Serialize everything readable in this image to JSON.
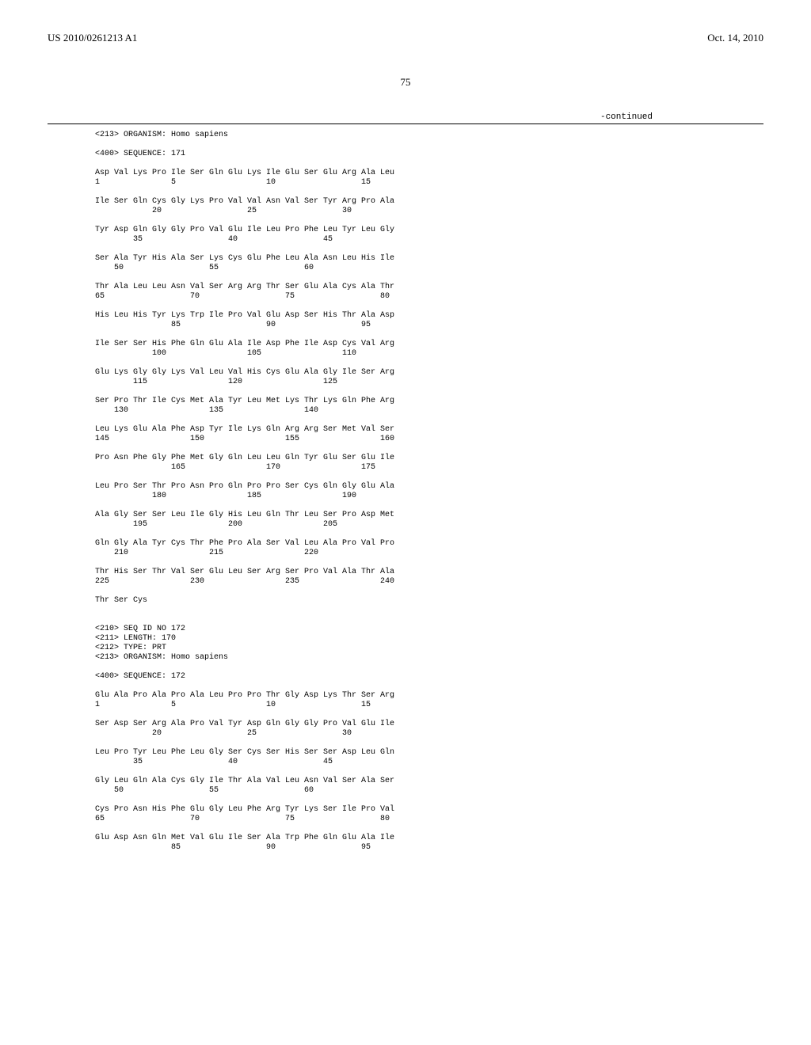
{
  "header": {
    "pub_number": "US 2010/0261213 A1",
    "pub_date": "Oct. 14, 2010"
  },
  "page_number": "75",
  "continued_label": "-continued",
  "seq171": {
    "organism_line": "<213> ORGANISM: Homo sapiens",
    "sequence_line": "<400> SEQUENCE: 171",
    "rows": [
      {
        "aa": "Asp Val Lys Pro Ile Ser Gln Glu Lys Ile Glu Ser Glu Arg Ala Leu",
        "nums": "1               5                   10                  15"
      },
      {
        "aa": "Ile Ser Gln Cys Gly Lys Pro Val Val Asn Val Ser Tyr Arg Pro Ala",
        "nums": "            20                  25                  30"
      },
      {
        "aa": "Tyr Asp Gln Gly Gly Pro Val Glu Ile Leu Pro Phe Leu Tyr Leu Gly",
        "nums": "        35                  40                  45"
      },
      {
        "aa": "Ser Ala Tyr His Ala Ser Lys Cys Glu Phe Leu Ala Asn Leu His Ile",
        "nums": "    50                  55                  60"
      },
      {
        "aa": "Thr Ala Leu Leu Asn Val Ser Arg Arg Thr Ser Glu Ala Cys Ala Thr",
        "nums": "65                  70                  75                  80"
      },
      {
        "aa": "His Leu His Tyr Lys Trp Ile Pro Val Glu Asp Ser His Thr Ala Asp",
        "nums": "                85                  90                  95"
      },
      {
        "aa": "Ile Ser Ser His Phe Gln Glu Ala Ile Asp Phe Ile Asp Cys Val Arg",
        "nums": "            100                 105                 110"
      },
      {
        "aa": "Glu Lys Gly Gly Lys Val Leu Val His Cys Glu Ala Gly Ile Ser Arg",
        "nums": "        115                 120                 125"
      },
      {
        "aa": "Ser Pro Thr Ile Cys Met Ala Tyr Leu Met Lys Thr Lys Gln Phe Arg",
        "nums": "    130                 135                 140"
      },
      {
        "aa": "Leu Lys Glu Ala Phe Asp Tyr Ile Lys Gln Arg Arg Ser Met Val Ser",
        "nums": "145                 150                 155                 160"
      },
      {
        "aa": "Pro Asn Phe Gly Phe Met Gly Gln Leu Leu Gln Tyr Glu Ser Glu Ile",
        "nums": "                165                 170                 175"
      },
      {
        "aa": "Leu Pro Ser Thr Pro Asn Pro Gln Pro Pro Ser Cys Gln Gly Glu Ala",
        "nums": "            180                 185                 190"
      },
      {
        "aa": "Ala Gly Ser Ser Leu Ile Gly His Leu Gln Thr Leu Ser Pro Asp Met",
        "nums": "        195                 200                 205"
      },
      {
        "aa": "Gln Gly Ala Tyr Cys Thr Phe Pro Ala Ser Val Leu Ala Pro Val Pro",
        "nums": "    210                 215                 220"
      },
      {
        "aa": "Thr His Ser Thr Val Ser Glu Leu Ser Arg Ser Pro Val Ala Thr Ala",
        "nums": "225                 230                 235                 240"
      },
      {
        "aa": "Thr Ser Cys",
        "nums": ""
      }
    ]
  },
  "seq172": {
    "header_lines": [
      "<210> SEQ ID NO 172",
      "<211> LENGTH: 170",
      "<212> TYPE: PRT",
      "<213> ORGANISM: Homo sapiens"
    ],
    "sequence_line": "<400> SEQUENCE: 172",
    "rows": [
      {
        "aa": "Glu Ala Pro Ala Pro Ala Leu Pro Pro Thr Gly Asp Lys Thr Ser Arg",
        "nums": "1               5                   10                  15"
      },
      {
        "aa": "Ser Asp Ser Arg Ala Pro Val Tyr Asp Gln Gly Gly Pro Val Glu Ile",
        "nums": "            20                  25                  30"
      },
      {
        "aa": "Leu Pro Tyr Leu Phe Leu Gly Ser Cys Ser His Ser Ser Asp Leu Gln",
        "nums": "        35                  40                  45"
      },
      {
        "aa": "Gly Leu Gln Ala Cys Gly Ile Thr Ala Val Leu Asn Val Ser Ala Ser",
        "nums": "    50                  55                  60"
      },
      {
        "aa": "Cys Pro Asn His Phe Glu Gly Leu Phe Arg Tyr Lys Ser Ile Pro Val",
        "nums": "65                  70                  75                  80"
      },
      {
        "aa": "Glu Asp Asn Gln Met Val Glu Ile Ser Ala Trp Phe Gln Glu Ala Ile",
        "nums": "                85                  90                  95"
      }
    ]
  }
}
